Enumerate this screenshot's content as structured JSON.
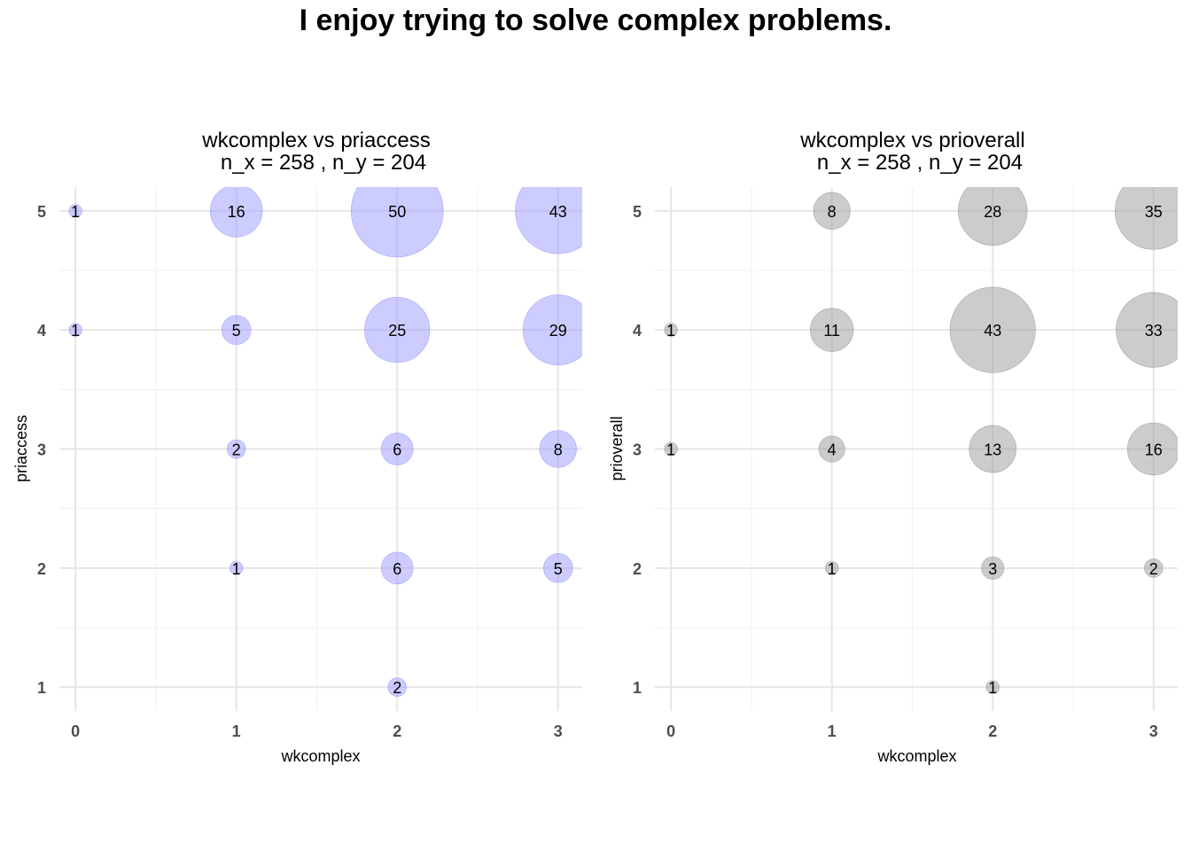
{
  "title": "I enjoy trying to solve complex problems.",
  "colors": {
    "panel1_fill": "#9999ff",
    "panel2_fill": "#999999"
  },
  "chart_data": [
    {
      "type": "scatter",
      "subtitle_line1": "wkcomplex vs priaccess",
      "subtitle_line2": "n_x = 258 , n_y = 204",
      "xlabel": "wkcomplex",
      "ylabel": "priaccess",
      "xticks": [
        0,
        1,
        2,
        3
      ],
      "yticks": [
        1,
        2,
        3,
        4,
        5
      ],
      "xlim": [
        -0.1,
        3.15
      ],
      "ylim": [
        0.8,
        5.2
      ],
      "grid": true,
      "fill": "#9999ff",
      "points": [
        {
          "x": 0,
          "y": 5,
          "n": 1
        },
        {
          "x": 1,
          "y": 5,
          "n": 16
        },
        {
          "x": 2,
          "y": 5,
          "n": 50
        },
        {
          "x": 3,
          "y": 5,
          "n": 43
        },
        {
          "x": 0,
          "y": 4,
          "n": 1
        },
        {
          "x": 1,
          "y": 4,
          "n": 5
        },
        {
          "x": 2,
          "y": 4,
          "n": 25
        },
        {
          "x": 3,
          "y": 4,
          "n": 29
        },
        {
          "x": 1,
          "y": 3,
          "n": 2
        },
        {
          "x": 2,
          "y": 3,
          "n": 6
        },
        {
          "x": 3,
          "y": 3,
          "n": 8
        },
        {
          "x": 1,
          "y": 2,
          "n": 1
        },
        {
          "x": 2,
          "y": 2,
          "n": 6
        },
        {
          "x": 3,
          "y": 2,
          "n": 5
        },
        {
          "x": 2,
          "y": 1,
          "n": 2
        }
      ]
    },
    {
      "type": "scatter",
      "subtitle_line1": "wkcomplex vs prioverall",
      "subtitle_line2": "n_x = 258 , n_y = 204",
      "xlabel": "wkcomplex",
      "ylabel": "prioverall",
      "xticks": [
        0,
        1,
        2,
        3
      ],
      "yticks": [
        1,
        2,
        3,
        4,
        5
      ],
      "xlim": [
        -0.1,
        3.15
      ],
      "ylim": [
        0.8,
        5.2
      ],
      "grid": true,
      "fill": "#999999",
      "points": [
        {
          "x": 1,
          "y": 5,
          "n": 8
        },
        {
          "x": 2,
          "y": 5,
          "n": 28
        },
        {
          "x": 3,
          "y": 5,
          "n": 35
        },
        {
          "x": 0,
          "y": 4,
          "n": 1
        },
        {
          "x": 1,
          "y": 4,
          "n": 11
        },
        {
          "x": 2,
          "y": 4,
          "n": 43
        },
        {
          "x": 3,
          "y": 4,
          "n": 33
        },
        {
          "x": 0,
          "y": 3,
          "n": 1
        },
        {
          "x": 1,
          "y": 3,
          "n": 4
        },
        {
          "x": 2,
          "y": 3,
          "n": 13
        },
        {
          "x": 3,
          "y": 3,
          "n": 16
        },
        {
          "x": 1,
          "y": 2,
          "n": 1
        },
        {
          "x": 2,
          "y": 2,
          "n": 3
        },
        {
          "x": 3,
          "y": 2,
          "n": 2
        },
        {
          "x": 2,
          "y": 1,
          "n": 1
        }
      ]
    }
  ]
}
